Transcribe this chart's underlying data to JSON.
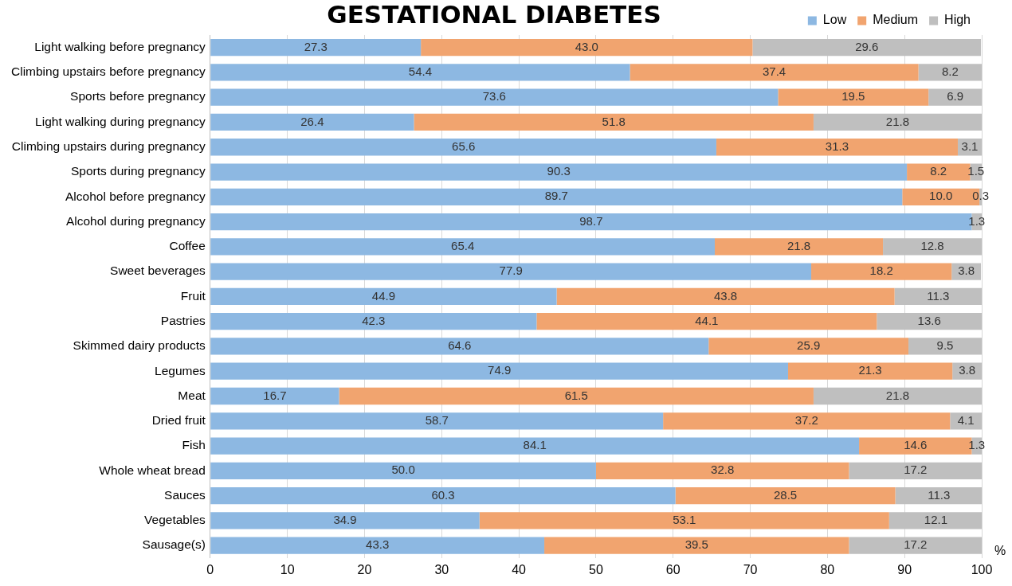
{
  "chart_data": {
    "type": "bar",
    "title": "GESTATIONAL DIABETES",
    "orientation": "horizontal",
    "stacked": true,
    "categories": [
      "Light walking before pregnancy",
      "Climbing upstairs before pregnancy",
      "Sports before pregnancy",
      "Light walking during pregnancy",
      "Climbing upstairs during pregnancy",
      "Sports during pregnancy",
      "Alcohol before pregnancy",
      "Alcohol during pregnancy",
      "Coffee",
      "Sweet beverages",
      "Fruit",
      "Pastries",
      "Skimmed dairy products",
      "Legumes",
      "Meat",
      "Dried fruit",
      "Fish",
      "Whole wheat bread",
      "Sauces",
      "Vegetables",
      "Sausage(s)"
    ],
    "series": [
      {
        "name": "Low",
        "color": "#8db8e2",
        "values": [
          27.3,
          54.4,
          73.6,
          26.4,
          65.6,
          90.3,
          89.7,
          98.7,
          65.4,
          77.9,
          44.9,
          42.3,
          64.6,
          74.9,
          16.7,
          58.7,
          84.1,
          50.0,
          60.3,
          34.9,
          43.3
        ],
        "value_labels": [
          "27.3",
          "54.4",
          "73.6",
          "26.4",
          "65.6",
          "90.3",
          "89.7",
          "98.7",
          "65.4",
          "77.9",
          "44.9",
          "42.3",
          "64.6",
          "74.9",
          "16.7",
          "58.7",
          "84.1",
          "50.0",
          "60.3",
          "34.9",
          "43.3"
        ]
      },
      {
        "name": "Medium",
        "color": "#f1a46f",
        "values": [
          43.0,
          37.4,
          19.5,
          51.8,
          31.3,
          8.2,
          10.0,
          0,
          21.8,
          18.2,
          43.8,
          44.1,
          25.9,
          21.3,
          61.5,
          37.2,
          14.6,
          32.8,
          28.5,
          53.1,
          39.5
        ],
        "value_labels": [
          "43.0",
          "37.4",
          "19.5",
          "51.8",
          "31.3",
          "8.2",
          "10.0",
          null,
          "21.8",
          "18.2",
          "43.8",
          "44.1",
          "25.9",
          "21.3",
          "61.5",
          "37.2",
          "14.6",
          "32.8",
          "28.5",
          "53.1",
          "39.5"
        ]
      },
      {
        "name": "High",
        "color": "#bfbfbf",
        "values": [
          29.6,
          8.2,
          6.9,
          21.8,
          3.1,
          1.5,
          0.3,
          1.3,
          12.8,
          3.8,
          11.3,
          13.6,
          9.5,
          3.8,
          21.8,
          4.1,
          1.3,
          17.2,
          11.3,
          12.1,
          17.2
        ],
        "value_labels": [
          "29.6",
          "8.2",
          "6.9",
          "21.8",
          "3.1",
          "1.5",
          "0.3",
          "1.3",
          "12.8",
          "3.8",
          "11.3",
          "13.6",
          "9.5",
          "3.8",
          "21.8",
          "4.1",
          "1.3",
          "17.2",
          "11.3",
          "12.1",
          "17.2"
        ]
      }
    ],
    "xlabel": "%",
    "xlim": [
      0,
      100
    ],
    "xticks": [
      0,
      10,
      20,
      30,
      40,
      50,
      60,
      70,
      80,
      90,
      100
    ],
    "grid": "x",
    "legend": "top right"
  }
}
